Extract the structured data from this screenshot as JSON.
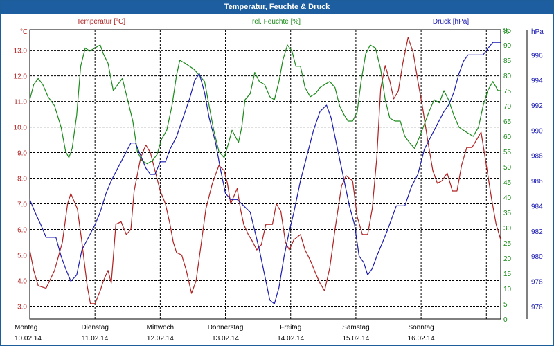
{
  "window": {
    "title": "Temperatur, Feuchte & Druck"
  },
  "colors": {
    "temperature": "#b02020",
    "humidity": "#1a8a1a",
    "pressure": "#1a1ab0",
    "grid": "#000000",
    "titlebar": "#1c5e9f"
  },
  "chart_data": {
    "type": "line",
    "grid": true,
    "legend": "top",
    "x_days": [
      {
        "day": "Montag",
        "date": "10.02.14"
      },
      {
        "day": "Dienstag",
        "date": "11.02.14"
      },
      {
        "day": "Mittwoch",
        "date": "12.02.14"
      },
      {
        "day": "Donnerstag",
        "date": "13.02.14"
      },
      {
        "day": "Freitag",
        "date": "14.02.14"
      },
      {
        "day": "Samstag",
        "date": "15.02.14"
      },
      {
        "day": "Sonntag",
        "date": "16.02.14"
      }
    ],
    "axes": {
      "temperature": {
        "unit": "°C",
        "min": 2.5,
        "max": 13.8,
        "ticks": [
          "3.0",
          "4.0",
          "5.0",
          "6.0",
          "7.0",
          "8.0",
          "9.0",
          "10.0",
          "11.0",
          "12.0",
          "13.0"
        ]
      },
      "humidity": {
        "unit": "%",
        "min": 0,
        "max": 95,
        "ticks": [
          "0",
          "5",
          "10",
          "15",
          "20",
          "25",
          "30",
          "35",
          "40",
          "45",
          "50",
          "55",
          "60",
          "65",
          "70",
          "75",
          "80",
          "85",
          "90",
          "95"
        ]
      },
      "pressure": {
        "unit": "hPa",
        "min": 975,
        "max": 998,
        "ticks": [
          "976",
          "978",
          "980",
          "982",
          "984",
          "986",
          "988",
          "990",
          "992",
          "994",
          "996"
        ]
      }
    },
    "series": [
      {
        "name": "Temperatur [°C]",
        "axis": "temperature",
        "points": [
          [
            0.0,
            5.2
          ],
          [
            0.06,
            4.4
          ],
          [
            0.13,
            3.8
          ],
          [
            0.25,
            3.7
          ],
          [
            0.38,
            4.4
          ],
          [
            0.5,
            5.5
          ],
          [
            0.58,
            7.0
          ],
          [
            0.63,
            7.4
          ],
          [
            0.73,
            6.8
          ],
          [
            0.8,
            5.5
          ],
          [
            0.88,
            3.8
          ],
          [
            0.93,
            3.1
          ],
          [
            1.0,
            3.1
          ],
          [
            1.08,
            3.6
          ],
          [
            1.13,
            4.0
          ],
          [
            1.2,
            4.4
          ],
          [
            1.25,
            3.9
          ],
          [
            1.32,
            6.2
          ],
          [
            1.4,
            6.3
          ],
          [
            1.48,
            5.8
          ],
          [
            1.55,
            6.0
          ],
          [
            1.6,
            7.5
          ],
          [
            1.7,
            8.8
          ],
          [
            1.78,
            9.3
          ],
          [
            1.85,
            9.0
          ],
          [
            1.92,
            8.3
          ],
          [
            2.0,
            7.5
          ],
          [
            2.08,
            7.0
          ],
          [
            2.15,
            6.2
          ],
          [
            2.2,
            5.5
          ],
          [
            2.25,
            5.1
          ],
          [
            2.33,
            5.0
          ],
          [
            2.4,
            4.4
          ],
          [
            2.48,
            3.5
          ],
          [
            2.55,
            4.0
          ],
          [
            2.62,
            5.3
          ],
          [
            2.7,
            6.8
          ],
          [
            2.8,
            7.8
          ],
          [
            2.9,
            8.5
          ],
          [
            2.98,
            8.3
          ],
          [
            3.03,
            7.8
          ],
          [
            3.08,
            7.0
          ],
          [
            3.13,
            7.3
          ],
          [
            3.18,
            7.6
          ],
          [
            3.23,
            6.8
          ],
          [
            3.28,
            6.2
          ],
          [
            3.35,
            5.8
          ],
          [
            3.4,
            5.6
          ],
          [
            3.48,
            5.2
          ],
          [
            3.55,
            5.4
          ],
          [
            3.62,
            6.2
          ],
          [
            3.72,
            6.2
          ],
          [
            3.78,
            7.0
          ],
          [
            3.85,
            6.7
          ],
          [
            3.92,
            5.5
          ],
          [
            3.98,
            5.2
          ],
          [
            4.05,
            5.6
          ],
          [
            4.15,
            5.8
          ],
          [
            4.22,
            5.2
          ],
          [
            4.3,
            4.8
          ],
          [
            4.38,
            4.3
          ],
          [
            4.45,
            3.9
          ],
          [
            4.52,
            3.6
          ],
          [
            4.6,
            4.5
          ],
          [
            4.68,
            6.0
          ],
          [
            4.78,
            7.7
          ],
          [
            4.85,
            8.1
          ],
          [
            4.95,
            7.9
          ],
          [
            5.02,
            6.5
          ],
          [
            5.1,
            5.8
          ],
          [
            5.18,
            5.8
          ],
          [
            5.25,
            6.8
          ],
          [
            5.32,
            8.8
          ],
          [
            5.38,
            11.5
          ],
          [
            5.45,
            12.4
          ],
          [
            5.52,
            11.8
          ],
          [
            5.58,
            11.1
          ],
          [
            5.65,
            11.4
          ],
          [
            5.72,
            12.5
          ],
          [
            5.8,
            13.5
          ],
          [
            5.88,
            12.9
          ],
          [
            5.95,
            11.8
          ],
          [
            6.02,
            10.8
          ],
          [
            6.1,
            9.5
          ],
          [
            6.18,
            8.3
          ],
          [
            6.25,
            7.8
          ],
          [
            6.32,
            7.9
          ],
          [
            6.4,
            8.2
          ],
          [
            6.48,
            7.5
          ],
          [
            6.55,
            7.5
          ],
          [
            6.62,
            8.5
          ],
          [
            6.7,
            9.2
          ],
          [
            6.78,
            9.2
          ],
          [
            6.85,
            9.5
          ],
          [
            6.92,
            9.8
          ],
          [
            7.0,
            8.5
          ],
          [
            7.08,
            7.2
          ],
          [
            7.15,
            6.2
          ],
          [
            7.22,
            5.6
          ]
        ]
      },
      {
        "name": "rel. Feuchte [%]",
        "axis": "humidity",
        "points": [
          [
            0.0,
            72
          ],
          [
            0.06,
            77
          ],
          [
            0.13,
            79
          ],
          [
            0.2,
            77
          ],
          [
            0.28,
            73
          ],
          [
            0.38,
            70
          ],
          [
            0.48,
            63
          ],
          [
            0.55,
            55
          ],
          [
            0.6,
            53
          ],
          [
            0.65,
            56
          ],
          [
            0.72,
            67
          ],
          [
            0.78,
            83
          ],
          [
            0.85,
            89
          ],
          [
            0.92,
            88
          ],
          [
            1.0,
            89
          ],
          [
            1.08,
            90
          ],
          [
            1.13,
            87
          ],
          [
            1.2,
            84
          ],
          [
            1.28,
            75
          ],
          [
            1.35,
            77
          ],
          [
            1.42,
            79
          ],
          [
            1.5,
            72
          ],
          [
            1.58,
            65
          ],
          [
            1.65,
            55
          ],
          [
            1.72,
            52
          ],
          [
            1.8,
            51
          ],
          [
            1.88,
            52
          ],
          [
            1.95,
            54
          ],
          [
            2.02,
            59
          ],
          [
            2.1,
            62
          ],
          [
            2.18,
            70
          ],
          [
            2.25,
            80
          ],
          [
            2.3,
            85
          ],
          [
            2.38,
            84
          ],
          [
            2.45,
            83
          ],
          [
            2.52,
            82
          ],
          [
            2.6,
            80
          ],
          [
            2.68,
            78
          ],
          [
            2.75,
            70
          ],
          [
            2.82,
            62
          ],
          [
            2.9,
            55
          ],
          [
            2.98,
            53
          ],
          [
            3.05,
            58
          ],
          [
            3.1,
            62
          ],
          [
            3.15,
            60
          ],
          [
            3.2,
            58
          ],
          [
            3.25,
            63
          ],
          [
            3.3,
            72
          ],
          [
            3.38,
            74
          ],
          [
            3.45,
            81
          ],
          [
            3.52,
            78
          ],
          [
            3.6,
            77
          ],
          [
            3.68,
            73
          ],
          [
            3.75,
            72
          ],
          [
            3.82,
            78
          ],
          [
            3.88,
            85
          ],
          [
            3.95,
            90
          ],
          [
            4.02,
            88
          ],
          [
            4.08,
            83
          ],
          [
            4.15,
            83
          ],
          [
            4.22,
            76
          ],
          [
            4.3,
            73
          ],
          [
            4.38,
            74
          ],
          [
            4.45,
            76
          ],
          [
            4.52,
            77
          ],
          [
            4.6,
            78
          ],
          [
            4.68,
            76
          ],
          [
            4.75,
            70
          ],
          [
            4.82,
            67
          ],
          [
            4.88,
            65
          ],
          [
            4.95,
            65
          ],
          [
            5.02,
            68
          ],
          [
            5.08,
            78
          ],
          [
            5.15,
            87
          ],
          [
            5.22,
            90
          ],
          [
            5.3,
            89
          ],
          [
            5.38,
            82
          ],
          [
            5.45,
            72
          ],
          [
            5.52,
            66
          ],
          [
            5.6,
            65
          ],
          [
            5.68,
            65
          ],
          [
            5.75,
            60
          ],
          [
            5.82,
            58
          ],
          [
            5.9,
            56
          ],
          [
            5.98,
            60
          ],
          [
            6.05,
            64
          ],
          [
            6.12,
            68
          ],
          [
            6.2,
            72
          ],
          [
            6.28,
            71
          ],
          [
            6.35,
            75
          ],
          [
            6.42,
            72
          ],
          [
            6.5,
            67
          ],
          [
            6.58,
            63
          ],
          [
            6.65,
            62
          ],
          [
            6.72,
            61
          ],
          [
            6.8,
            60
          ],
          [
            6.88,
            63
          ],
          [
            6.95,
            70
          ],
          [
            7.02,
            75
          ],
          [
            7.1,
            78
          ],
          [
            7.18,
            75
          ],
          [
            7.22,
            75
          ]
        ]
      },
      {
        "name": "Druck [hPa]",
        "axis": "pressure",
        "points": [
          [
            0.0,
            984.5
          ],
          [
            0.08,
            983.5
          ],
          [
            0.17,
            982.5
          ],
          [
            0.25,
            981.5
          ],
          [
            0.4,
            981.5
          ],
          [
            0.48,
            980.0
          ],
          [
            0.55,
            979.0
          ],
          [
            0.63,
            978.0
          ],
          [
            0.72,
            978.5
          ],
          [
            0.8,
            980.5
          ],
          [
            0.9,
            981.5
          ],
          [
            1.0,
            982.5
          ],
          [
            1.08,
            983.5
          ],
          [
            1.17,
            985.0
          ],
          [
            1.25,
            986.0
          ],
          [
            1.35,
            987.0
          ],
          [
            1.45,
            988.0
          ],
          [
            1.55,
            989.0
          ],
          [
            1.62,
            989.0
          ],
          [
            1.7,
            988.0
          ],
          [
            1.78,
            987.0
          ],
          [
            1.85,
            986.5
          ],
          [
            1.92,
            986.5
          ],
          [
            2.0,
            987.5
          ],
          [
            2.08,
            987.5
          ],
          [
            2.15,
            988.5
          ],
          [
            2.25,
            989.5
          ],
          [
            2.35,
            991.0
          ],
          [
            2.45,
            992.5
          ],
          [
            2.53,
            994.0
          ],
          [
            2.6,
            994.5
          ],
          [
            2.68,
            993.0
          ],
          [
            2.75,
            991.0
          ],
          [
            2.85,
            989.0
          ],
          [
            2.92,
            987.0
          ],
          [
            3.0,
            985.0
          ],
          [
            3.08,
            984.5
          ],
          [
            3.18,
            984.5
          ],
          [
            3.28,
            984.0
          ],
          [
            3.38,
            983.5
          ],
          [
            3.45,
            982.0
          ],
          [
            3.52,
            980.5
          ],
          [
            3.6,
            978.5
          ],
          [
            3.68,
            976.5
          ],
          [
            3.75,
            976.2
          ],
          [
            3.82,
            977.5
          ],
          [
            3.9,
            980.0
          ],
          [
            3.98,
            982.0
          ],
          [
            4.05,
            983.5
          ],
          [
            4.15,
            986.0
          ],
          [
            4.25,
            988.0
          ],
          [
            4.35,
            990.0
          ],
          [
            4.45,
            991.5
          ],
          [
            4.55,
            992.0
          ],
          [
            4.62,
            991.0
          ],
          [
            4.72,
            988.5
          ],
          [
            4.82,
            986.0
          ],
          [
            4.9,
            984.0
          ],
          [
            4.98,
            982.5
          ],
          [
            5.05,
            980.0
          ],
          [
            5.12,
            979.5
          ],
          [
            5.18,
            978.5
          ],
          [
            5.25,
            979.0
          ],
          [
            5.32,
            980.0
          ],
          [
            5.4,
            981.0
          ],
          [
            5.48,
            982.0
          ],
          [
            5.55,
            983.0
          ],
          [
            5.62,
            984.0
          ],
          [
            5.75,
            984.0
          ],
          [
            5.85,
            985.5
          ],
          [
            5.95,
            986.5
          ],
          [
            6.05,
            988.5
          ],
          [
            6.15,
            989.5
          ],
          [
            6.25,
            990.5
          ],
          [
            6.35,
            991.5
          ],
          [
            6.42,
            992.0
          ],
          [
            6.5,
            993.0
          ],
          [
            6.58,
            994.5
          ],
          [
            6.65,
            995.5
          ],
          [
            6.72,
            996.0
          ],
          [
            6.82,
            996.0
          ],
          [
            6.95,
            996.0
          ],
          [
            7.02,
            996.5
          ],
          [
            7.1,
            997.0
          ],
          [
            7.22,
            997.0
          ]
        ]
      }
    ]
  }
}
